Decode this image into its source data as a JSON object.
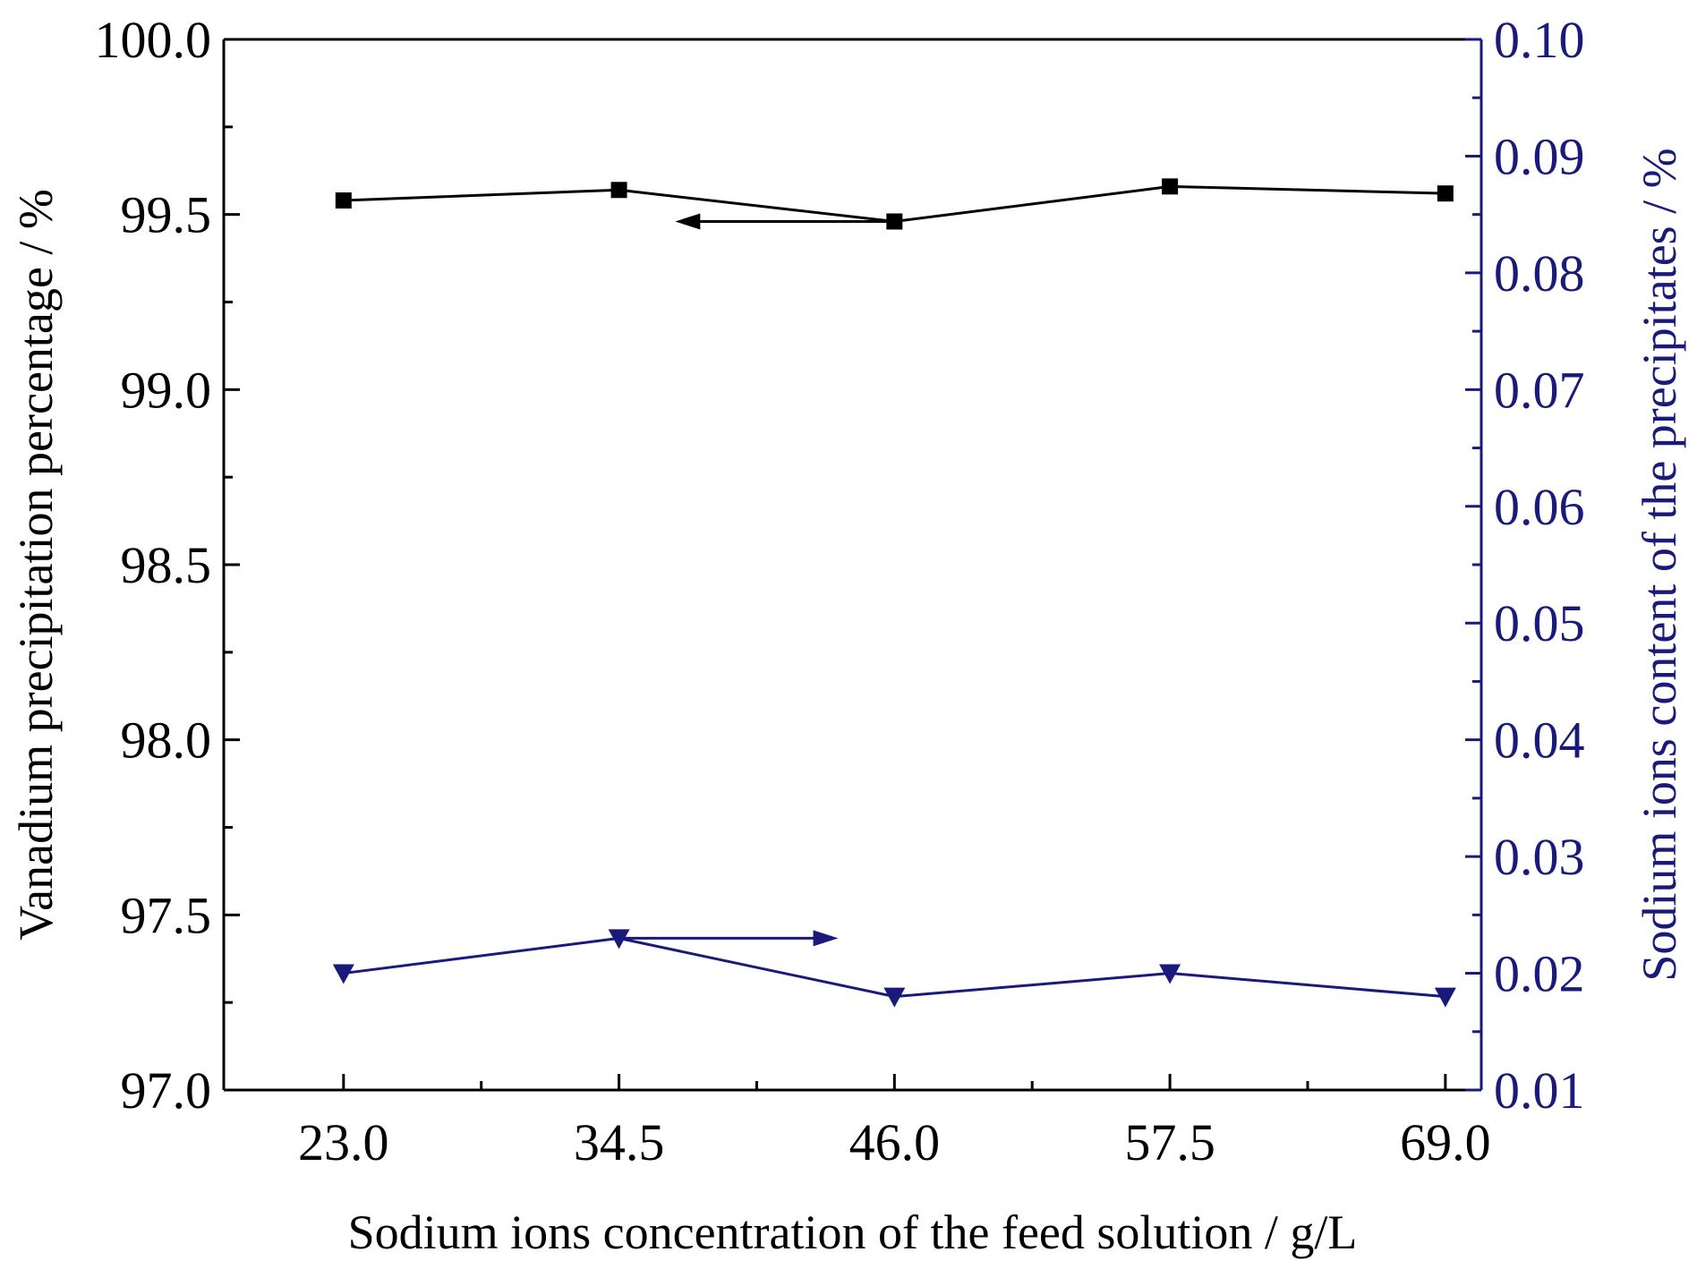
{
  "chart_data": {
    "type": "line",
    "title": "",
    "xlabel": "Sodium ions concentration of the feed solution / g/L",
    "categories": [
      "23.0",
      "34.5",
      "46.0",
      "57.5",
      "69.0"
    ],
    "x": [
      23.0,
      34.5,
      46.0,
      57.5,
      69.0
    ],
    "xlim": [
      18.0,
      70.5
    ],
    "y_left": {
      "label": "Vanadium precipitation percentage / %",
      "lim": [
        97.0,
        100.0
      ],
      "ticks": [
        "97.0",
        "97.5",
        "98.0",
        "98.5",
        "99.0",
        "99.5",
        "100.0"
      ]
    },
    "y_right": {
      "label": "Sodium ions content of the precipitates / %",
      "lim": [
        0.01,
        0.1
      ],
      "ticks": [
        "0.01",
        "0.02",
        "0.03",
        "0.04",
        "0.05",
        "0.06",
        "0.07",
        "0.08",
        "0.09",
        "0.10"
      ]
    },
    "series": [
      {
        "name": "Vanadium precipitation percentage",
        "axis": "left",
        "marker": "square",
        "color": "#000000",
        "values": [
          99.54,
          99.57,
          99.48,
          99.58,
          99.56
        ]
      },
      {
        "name": "Sodium ions content of the precipitates",
        "axis": "right",
        "marker": "triangle-down",
        "color": "#1a1a7a",
        "values": [
          0.02,
          0.023,
          0.018,
          0.02,
          0.018
        ]
      }
    ],
    "annotations": [
      {
        "name": "left-axis-arrow",
        "direction": "left",
        "series": 0
      },
      {
        "name": "right-axis-arrow",
        "direction": "right",
        "series": 1
      }
    ]
  }
}
